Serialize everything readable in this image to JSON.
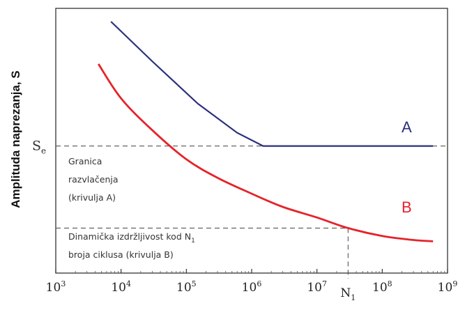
{
  "chart_data": {
    "type": "line",
    "ylabel": "Amplituda naprezanja, S",
    "x_scale": "log",
    "xlim": [
      1000,
      1000000000
    ],
    "x_ticks": [
      {
        "value": 1000,
        "base": "10",
        "exp": "3"
      },
      {
        "value": 10000,
        "base": "10",
        "exp": "4"
      },
      {
        "value": 100000,
        "base": "10",
        "exp": "5"
      },
      {
        "value": 1000000,
        "base": "10",
        "exp": "6"
      },
      {
        "value": 10000000,
        "base": "10",
        "exp": "7"
      },
      {
        "value": 100000000,
        "base": "10",
        "exp": "8"
      },
      {
        "value": 1000000000,
        "base": "10",
        "exp": "9"
      }
    ],
    "n1_tick": {
      "value": 30000000,
      "base": "N",
      "sub": "1"
    },
    "y_ticks": [
      {
        "value": 0.48,
        "base": "S",
        "sub": "e"
      }
    ],
    "ylim": [
      0,
      1
    ],
    "series": [
      {
        "name": "A",
        "color": "#2b2f7c",
        "points": [
          [
            7000,
            0.95
          ],
          [
            30000,
            0.8
          ],
          [
            150000,
            0.64
          ],
          [
            600000,
            0.53
          ],
          [
            1500000,
            0.48
          ],
          [
            600000000,
            0.48
          ]
        ]
      },
      {
        "name": "B",
        "color": "#e5232a",
        "points": [
          [
            4500,
            0.79
          ],
          [
            10000,
            0.66
          ],
          [
            30000,
            0.54
          ],
          [
            100000,
            0.43
          ],
          [
            300000,
            0.36
          ],
          [
            1000000,
            0.3
          ],
          [
            3000000,
            0.25
          ],
          [
            10000000,
            0.21
          ],
          [
            30000000,
            0.17
          ],
          [
            100000000,
            0.14
          ],
          [
            300000000,
            0.125
          ],
          [
            600000000,
            0.12
          ]
        ]
      }
    ],
    "reference_lines": [
      {
        "type": "horizontal",
        "y": 0.48,
        "style": "dashed"
      },
      {
        "type": "horizontal",
        "y": 0.17,
        "style": "dashed"
      },
      {
        "type": "vertical",
        "x": 30000000,
        "style": "dashed"
      }
    ],
    "annotations": [
      {
        "lines": [
          "Granica",
          "razvlačenja",
          "(krivulja A)"
        ]
      },
      {
        "lines": [
          "Dinamička izdržljivost kod N",
          "broja ciklusa (krivulja B)"
        ],
        "subscript": "1"
      }
    ],
    "grid": false
  }
}
